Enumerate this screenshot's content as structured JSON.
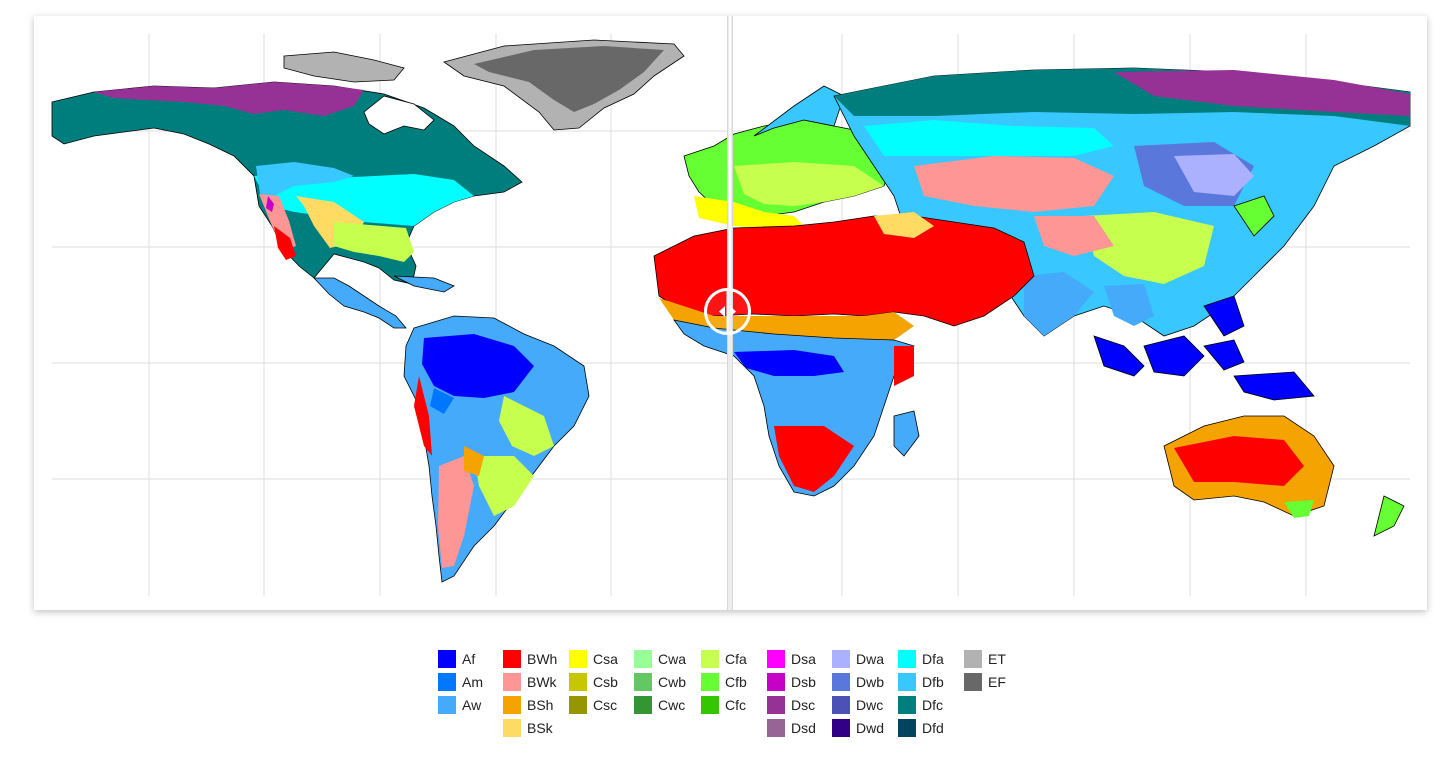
{
  "legend": {
    "columns": [
      [
        {
          "code": "Af",
          "color": "#0000fe"
        },
        {
          "code": "Am",
          "color": "#0077ff"
        },
        {
          "code": "Aw",
          "color": "#46aafa"
        }
      ],
      [
        {
          "code": "BWh",
          "color": "#fe0000"
        },
        {
          "code": "BWk",
          "color": "#fe9695"
        },
        {
          "code": "BSh",
          "color": "#f5a301"
        },
        {
          "code": "BSk",
          "color": "#ffdb63"
        }
      ],
      [
        {
          "code": "Csa",
          "color": "#ffff00"
        },
        {
          "code": "Csb",
          "color": "#c6c700"
        },
        {
          "code": "Csc",
          "color": "#969600"
        }
      ],
      [
        {
          "code": "Cwa",
          "color": "#96ff96"
        },
        {
          "code": "Cwb",
          "color": "#63c764"
        },
        {
          "code": "Cwc",
          "color": "#329633"
        }
      ],
      [
        {
          "code": "Cfa",
          "color": "#c6ff4e"
        },
        {
          "code": "Cfb",
          "color": "#66ff33"
        },
        {
          "code": "Cfc",
          "color": "#33c701"
        }
      ],
      [
        {
          "code": "Dsa",
          "color": "#ff00fe"
        },
        {
          "code": "Dsb",
          "color": "#c600c7"
        },
        {
          "code": "Dsc",
          "color": "#963295"
        },
        {
          "code": "Dsd",
          "color": "#966495"
        }
      ],
      [
        {
          "code": "Dwa",
          "color": "#abb1ff"
        },
        {
          "code": "Dwb",
          "color": "#5a77db"
        },
        {
          "code": "Dwc",
          "color": "#4c51b5"
        },
        {
          "code": "Dwd",
          "color": "#320087"
        }
      ],
      [
        {
          "code": "Dfa",
          "color": "#00ffff"
        },
        {
          "code": "Dfb",
          "color": "#38c7ff"
        },
        {
          "code": "Dfc",
          "color": "#007e7d"
        },
        {
          "code": "Dfd",
          "color": "#00455e"
        }
      ],
      [
        {
          "code": "ET",
          "color": "#b2b2b2"
        },
        {
          "code": "EF",
          "color": "#686868"
        }
      ]
    ]
  },
  "compare_slider": {
    "position_fraction": 0.5
  },
  "icons": {
    "slider_handle": "left-right-arrows-icon"
  }
}
